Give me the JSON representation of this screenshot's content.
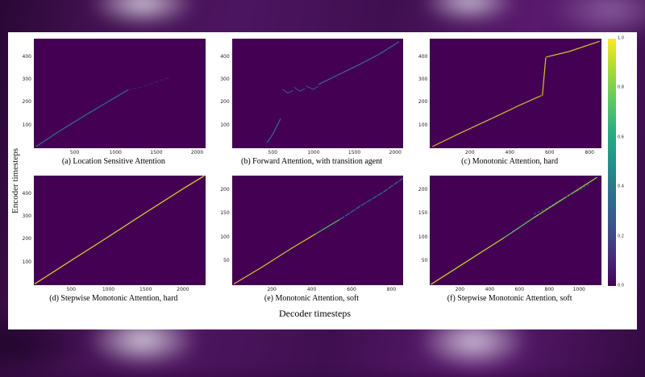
{
  "figure": {
    "ylabel": "Encoder timesteps",
    "xlabel": "Decoder timesteps"
  },
  "colorbar": {
    "ticks": [
      "1.0",
      "0.8",
      "0.6",
      "0.4",
      "0.2",
      "0.0"
    ],
    "colormap": "viridis",
    "min_color": "#440154",
    "max_color": "#fde725"
  },
  "chart_data": [
    {
      "type": "heatmap",
      "caption": "(a) Location Sensitive Attention",
      "xlim": [
        0,
        2100
      ],
      "ylim": [
        0,
        480
      ],
      "x_ticks": [
        500,
        1000,
        1500,
        2000
      ],
      "y_ticks": [
        100,
        200,
        300,
        400
      ],
      "bg": "#440154",
      "segments": [
        {
          "color": "#2d708e",
          "width": 1.2,
          "points": [
            [
              30,
              8
            ],
            [
              300,
              72
            ],
            [
              600,
              138
            ],
            [
              900,
              202
            ],
            [
              1150,
              255
            ]
          ]
        },
        {
          "color": "#3b528b",
          "width": 1,
          "opacity": 0.45,
          "dash": "4,3",
          "points": [
            [
              1150,
              255
            ],
            [
              1320,
              268
            ],
            [
              1500,
              290
            ],
            [
              1650,
              308
            ]
          ]
        }
      ]
    },
    {
      "type": "heatmap",
      "caption": "(b) Forward Attention, with transition agent",
      "xlim": [
        0,
        2100
      ],
      "ylim": [
        0,
        480
      ],
      "x_ticks": [
        500,
        1000,
        1500,
        2000
      ],
      "y_ticks": [
        100,
        200,
        300,
        400
      ],
      "bg": "#440154",
      "segments": [
        {
          "color": "#2d708e",
          "width": 1.2,
          "points": [
            [
              430,
              25
            ],
            [
              510,
              70
            ],
            [
              590,
              128
            ]
          ]
        },
        {
          "color": "#355f8d",
          "width": 1,
          "points": [
            [
              620,
              258
            ],
            [
              680,
              242
            ],
            [
              740,
              252
            ]
          ]
        },
        {
          "color": "#355f8d",
          "width": 1,
          "points": [
            [
              760,
              266
            ],
            [
              830,
              250
            ],
            [
              890,
              262
            ]
          ]
        },
        {
          "color": "#355f8d",
          "width": 1,
          "points": [
            [
              910,
              272
            ],
            [
              990,
              258
            ],
            [
              1050,
              270
            ]
          ]
        },
        {
          "color": "#2d708e",
          "width": 1.2,
          "points": [
            [
              1060,
              280
            ],
            [
              1300,
              322
            ],
            [
              1550,
              365
            ],
            [
              1800,
              412
            ],
            [
              2040,
              466
            ]
          ]
        }
      ]
    },
    {
      "type": "heatmap",
      "caption": "(c) Monotonic Attention, hard",
      "xlim": [
        0,
        860
      ],
      "ylim": [
        0,
        480
      ],
      "x_ticks": [
        200,
        400,
        600,
        800
      ],
      "y_ticks": [
        100,
        200,
        300,
        400
      ],
      "bg": "#440154",
      "segments": [
        {
          "color": "#d5b92e",
          "width": 1.2,
          "points": [
            [
              15,
              8
            ],
            [
              150,
              65
            ],
            [
              300,
              126
            ],
            [
              450,
              188
            ],
            [
              558,
              230
            ]
          ]
        },
        {
          "color": "#d5c22a",
          "width": 1.2,
          "points": [
            [
              565,
              232
            ],
            [
              582,
              396
            ]
          ]
        },
        {
          "color": "#d5c22a",
          "width": 1.2,
          "points": [
            [
              586,
              400
            ],
            [
              700,
              424
            ],
            [
              850,
              468
            ]
          ]
        }
      ]
    },
    {
      "type": "heatmap",
      "caption": "(d) Stepwise Monotonic Attention, hard",
      "xlim": [
        0,
        2300
      ],
      "ylim": [
        0,
        480
      ],
      "x_ticks": [
        500,
        1000,
        1500,
        2000
      ],
      "y_ticks": [
        100,
        200,
        300,
        400
      ],
      "bg": "#440154",
      "segments": [
        {
          "color": "#e3d62c",
          "width": 1.2,
          "points": [
            [
              15,
              6
            ],
            [
              500,
              108
            ],
            [
              1000,
              212
            ],
            [
              1500,
              318
            ],
            [
              2000,
              422
            ],
            [
              2280,
              478
            ]
          ]
        }
      ]
    },
    {
      "type": "heatmap",
      "caption": "(e) Monotonic Attention, soft",
      "xlim": [
        0,
        860
      ],
      "ylim": [
        0,
        230
      ],
      "x_ticks": [
        200,
        400,
        600,
        800
      ],
      "y_ticks": [
        50,
        100,
        150,
        200
      ],
      "bg": "#440154",
      "segments": [
        {
          "color": "#d4c92b",
          "width": 1.2,
          "points": [
            [
              10,
              3
            ],
            [
              150,
              38
            ],
            [
              300,
              78
            ],
            [
              420,
              108
            ]
          ]
        },
        {
          "color": "#4ac16d",
          "width": 1.2,
          "points": [
            [
              420,
              108
            ],
            [
              540,
              138
            ]
          ]
        },
        {
          "color": "#2d708e",
          "width": 1.2,
          "dash": "6,2",
          "points": [
            [
              540,
              138
            ],
            [
              650,
              168
            ],
            [
              760,
              196
            ],
            [
              855,
              224
            ]
          ]
        }
      ]
    },
    {
      "type": "heatmap",
      "caption": "(f) Stepwise Monotonic Attention, soft",
      "xlim": [
        0,
        1150
      ],
      "ylim": [
        0,
        230
      ],
      "x_ticks": [
        200,
        400,
        600,
        800,
        1000
      ],
      "y_ticks": [
        50,
        100,
        150,
        200
      ],
      "bg": "#440154",
      "segments": [
        {
          "color": "#c2d32b",
          "width": 1.2,
          "points": [
            [
              10,
              2
            ],
            [
              250,
              50
            ],
            [
              500,
              100
            ]
          ]
        },
        {
          "color": "#5ec962",
          "width": 1.2,
          "points": [
            [
              500,
              100
            ],
            [
              700,
              142
            ]
          ]
        },
        {
          "color": "#9ad93c",
          "width": 1.2,
          "points": [
            [
              700,
              142
            ],
            [
              900,
              182
            ],
            [
              1120,
              226
            ]
          ]
        },
        {
          "color": "#31688e",
          "width": 1,
          "dash": "2,3",
          "points": [
            [
              700,
              150
            ],
            [
              790,
              162
            ],
            [
              880,
              180
            ],
            [
              980,
              196
            ],
            [
              1080,
              214
            ]
          ]
        }
      ]
    }
  ]
}
